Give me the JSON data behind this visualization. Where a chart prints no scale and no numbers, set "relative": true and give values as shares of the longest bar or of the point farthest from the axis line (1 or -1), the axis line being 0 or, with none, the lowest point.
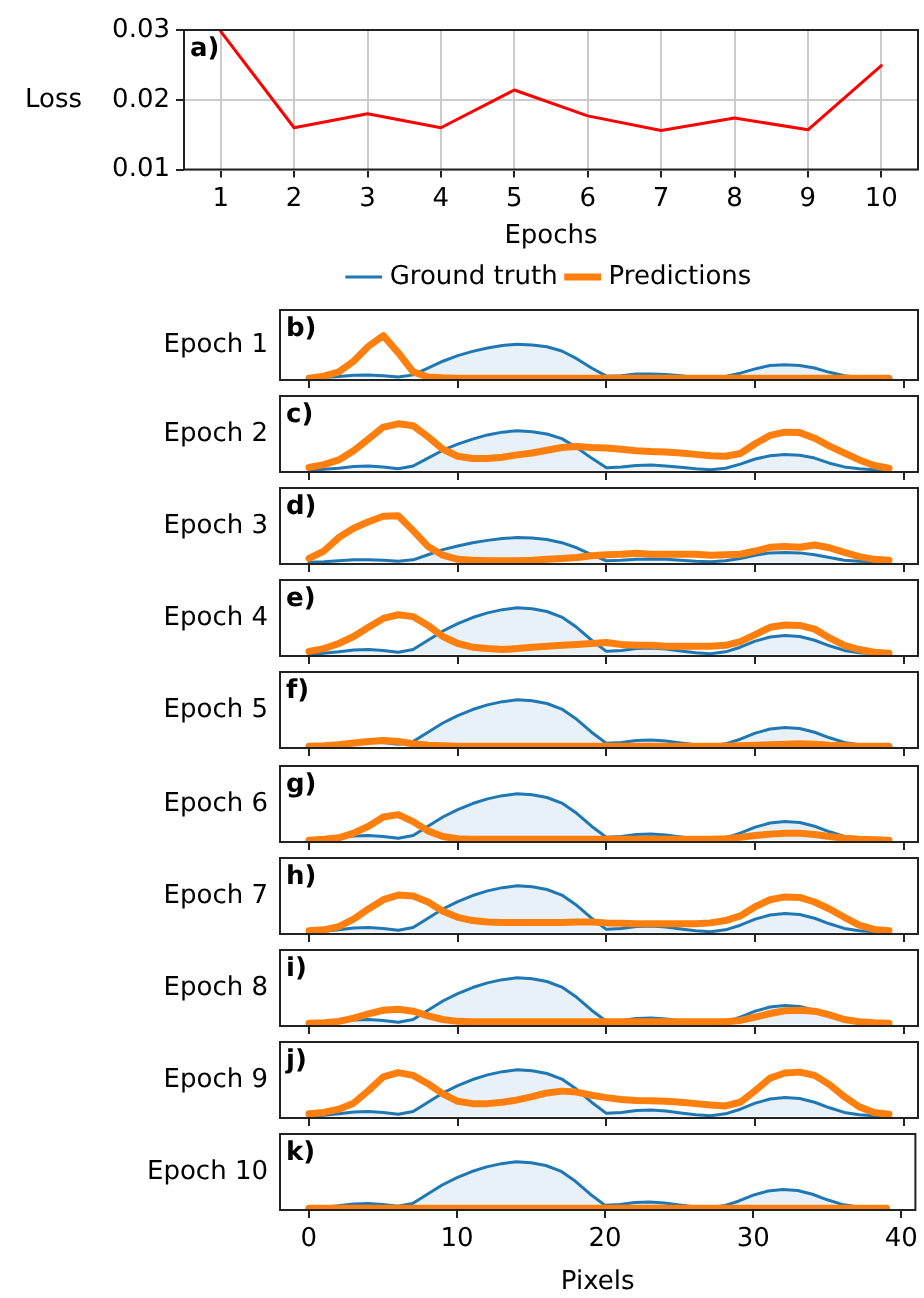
{
  "chart_data": [
    {
      "type": "line",
      "categories": [
        "1",
        "2",
        "3",
        "4",
        "5",
        "6",
        "7",
        "8",
        "9",
        "10"
      ],
      "xlabel": "Epochs",
      "ylabel": "Loss",
      "ylim": [
        0.01,
        0.03
      ],
      "yticks": [
        0.01,
        0.02,
        0.03
      ],
      "grid": true,
      "annotations": [
        "a)"
      ],
      "series": [
        {
          "color": "#ff0000",
          "values": [
            0.0298,
            0.016,
            0.018,
            0.016,
            0.0214,
            0.0177,
            0.0156,
            0.0174,
            0.0157,
            0.0249
          ]
        }
      ]
    },
    {
      "type": "line",
      "relative": true,
      "ylabel": "Epoch 1",
      "annotations": [
        "b)"
      ],
      "legend": "top",
      "tick_labels": false,
      "xlim": [
        -1.95,
        40.95
      ],
      "xticks": [
        0,
        10,
        20,
        30,
        40
      ],
      "x": [
        0,
        1,
        2,
        3,
        4,
        5,
        6,
        7,
        8,
        9,
        10,
        11,
        12,
        13,
        14,
        15,
        16,
        17,
        18,
        19,
        20,
        21,
        22,
        23,
        24,
        25,
        26,
        27,
        28,
        29,
        30,
        31,
        32,
        33,
        34,
        35,
        36,
        37,
        38,
        39
      ],
      "series": [
        {
          "name": "Ground truth",
          "type": "area",
          "color": "#1f77b4",
          "values": [
            0,
            0.02,
            0.04,
            0.07,
            0.08,
            0.06,
            0.03,
            0.08,
            0.24,
            0.4,
            0.53,
            0.63,
            0.71,
            0.77,
            0.8,
            0.78,
            0.74,
            0.64,
            0.46,
            0.24,
            0.05,
            0.06,
            0.1,
            0.1,
            0.09,
            0.06,
            0.02,
            0.01,
            0.04,
            0.12,
            0.22,
            0.3,
            0.32,
            0.3,
            0.24,
            0.14,
            0.06,
            0.02,
            0.01,
            0
          ]
        },
        {
          "name": "Predictions",
          "color": "#ff7f0e",
          "values": [
            0,
            0.05,
            0.15,
            0.4,
            0.75,
            1,
            0.6,
            0.15,
            0.03,
            0.01,
            0,
            0,
            0,
            0,
            0,
            0,
            0,
            0,
            0,
            0,
            0,
            0,
            0,
            0,
            0,
            0,
            0,
            0,
            0,
            0,
            0,
            0,
            0,
            0,
            0,
            0,
            0,
            0,
            0,
            0
          ]
        }
      ]
    },
    {
      "type": "line",
      "relative": true,
      "ylabel": "Epoch 2",
      "annotations": [
        "c)"
      ],
      "tick_labels": false,
      "xlim": [
        -1.95,
        40.95
      ],
      "xticks": [
        0,
        10,
        20,
        30,
        40
      ],
      "x": [
        0,
        1,
        2,
        3,
        4,
        5,
        6,
        7,
        8,
        9,
        10,
        11,
        12,
        13,
        14,
        15,
        16,
        17,
        18,
        19,
        20,
        21,
        22,
        23,
        24,
        25,
        26,
        27,
        28,
        29,
        30,
        31,
        32,
        33,
        34,
        35,
        36,
        37,
        38,
        39
      ],
      "series": [
        {
          "type": "area",
          "color": "#1f77b4",
          "values": [
            0,
            0.02,
            0.04,
            0.08,
            0.09,
            0.07,
            0.03,
            0.09,
            0.26,
            0.43,
            0.56,
            0.67,
            0.76,
            0.82,
            0.85,
            0.83,
            0.78,
            0.68,
            0.49,
            0.26,
            0.05,
            0.07,
            0.1,
            0.11,
            0.09,
            0.06,
            0.03,
            0.01,
            0.04,
            0.13,
            0.24,
            0.31,
            0.34,
            0.32,
            0.26,
            0.15,
            0.07,
            0.03,
            0.01,
            0
          ]
        },
        {
          "color": "#ff7f0e",
          "values": [
            0.06,
            0.12,
            0.22,
            0.42,
            0.67,
            0.93,
            1,
            0.96,
            0.72,
            0.45,
            0.3,
            0.25,
            0.25,
            0.28,
            0.33,
            0.37,
            0.43,
            0.49,
            0.51,
            0.49,
            0.48,
            0.45,
            0.42,
            0.4,
            0.39,
            0.37,
            0.34,
            0.31,
            0.3,
            0.36,
            0.57,
            0.75,
            0.82,
            0.81,
            0.69,
            0.52,
            0.37,
            0.22,
            0.1,
            0.04
          ]
        }
      ]
    },
    {
      "type": "line",
      "relative": true,
      "ylabel": "Epoch 3",
      "annotations": [
        "d)"
      ],
      "tick_labels": false,
      "xlim": [
        -1.95,
        40.95
      ],
      "xticks": [
        0,
        10,
        20,
        30,
        40
      ],
      "x": [
        0,
        1,
        2,
        3,
        4,
        5,
        6,
        7,
        8,
        9,
        10,
        11,
        12,
        13,
        14,
        15,
        16,
        17,
        18,
        19,
        20,
        21,
        22,
        23,
        24,
        25,
        26,
        27,
        28,
        29,
        30,
        31,
        32,
        33,
        34,
        35,
        36,
        37,
        38,
        39
      ],
      "series": [
        {
          "type": "area",
          "color": "#1f77b4",
          "values": [
            0,
            0.01,
            0.03,
            0.05,
            0.05,
            0.04,
            0.02,
            0.05,
            0.16,
            0.27,
            0.35,
            0.42,
            0.47,
            0.51,
            0.53,
            0.52,
            0.49,
            0.42,
            0.31,
            0.16,
            0.03,
            0.04,
            0.06,
            0.07,
            0.06,
            0.04,
            0.02,
            0.01,
            0.03,
            0.08,
            0.15,
            0.2,
            0.21,
            0.2,
            0.16,
            0.1,
            0.04,
            0.02,
            0.01,
            0
          ]
        },
        {
          "color": "#ff7f0e",
          "values": [
            0.08,
            0.24,
            0.53,
            0.73,
            0.87,
            0.99,
            1,
            0.68,
            0.34,
            0.15,
            0.06,
            0.04,
            0.03,
            0.03,
            0.03,
            0.04,
            0.06,
            0.08,
            0.1,
            0.14,
            0.16,
            0.17,
            0.19,
            0.17,
            0.17,
            0.17,
            0.17,
            0.15,
            0.16,
            0.17,
            0.24,
            0.32,
            0.34,
            0.32,
            0.37,
            0.31,
            0.21,
            0.12,
            0.06,
            0.04
          ]
        }
      ]
    },
    {
      "type": "line",
      "relative": true,
      "ylabel": "Epoch 4",
      "annotations": [
        "e)"
      ],
      "tick_labels": false,
      "xlim": [
        -1.95,
        40.95
      ],
      "xticks": [
        0,
        10,
        20,
        30,
        40
      ],
      "x": [
        0,
        1,
        2,
        3,
        4,
        5,
        6,
        7,
        8,
        9,
        10,
        11,
        12,
        13,
        14,
        15,
        16,
        17,
        18,
        19,
        20,
        21,
        22,
        23,
        24,
        25,
        26,
        27,
        28,
        29,
        30,
        31,
        32,
        33,
        34,
        35,
        36,
        37,
        38,
        39
      ],
      "series": [
        {
          "type": "area",
          "color": "#1f77b4",
          "values": [
            0,
            0.02,
            0.05,
            0.09,
            0.1,
            0.08,
            0.04,
            0.1,
            0.3,
            0.5,
            0.66,
            0.79,
            0.89,
            0.96,
            1,
            0.98,
            0.92,
            0.8,
            0.58,
            0.3,
            0.06,
            0.08,
            0.12,
            0.13,
            0.11,
            0.07,
            0.03,
            0.01,
            0.05,
            0.15,
            0.28,
            0.37,
            0.4,
            0.38,
            0.3,
            0.18,
            0.08,
            0.03,
            0.01,
            0
          ]
        },
        {
          "color": "#ff7f0e",
          "values": [
            0.06,
            0.12,
            0.23,
            0.38,
            0.58,
            0.77,
            0.85,
            0.81,
            0.62,
            0.38,
            0.23,
            0.15,
            0.12,
            0.1,
            0.12,
            0.15,
            0.17,
            0.19,
            0.21,
            0.23,
            0.25,
            0.21,
            0.19,
            0.19,
            0.17,
            0.17,
            0.17,
            0.17,
            0.19,
            0.27,
            0.42,
            0.58,
            0.63,
            0.62,
            0.54,
            0.35,
            0.19,
            0.1,
            0.04,
            0.02
          ]
        }
      ]
    },
    {
      "type": "line",
      "relative": true,
      "ylabel": "Epoch 5",
      "annotations": [
        "f)"
      ],
      "tick_labels": false,
      "xlim": [
        -1.95,
        40.95
      ],
      "xticks": [
        0,
        10,
        20,
        30,
        40
      ],
      "x": [
        0,
        1,
        2,
        3,
        4,
        5,
        6,
        7,
        8,
        9,
        10,
        11,
        12,
        13,
        14,
        15,
        16,
        17,
        18,
        19,
        20,
        21,
        22,
        23,
        24,
        25,
        26,
        27,
        28,
        29,
        30,
        31,
        32,
        33,
        34,
        35,
        36,
        37,
        38,
        39
      ],
      "series": [
        {
          "type": "area",
          "color": "#1f77b4",
          "values": [
            0,
            0.02,
            0.05,
            0.09,
            0.1,
            0.08,
            0.04,
            0.1,
            0.3,
            0.5,
            0.66,
            0.79,
            0.89,
            0.96,
            1,
            0.98,
            0.92,
            0.8,
            0.58,
            0.3,
            0.06,
            0.08,
            0.12,
            0.13,
            0.11,
            0.07,
            0.03,
            0.01,
            0.05,
            0.15,
            0.28,
            0.37,
            0.4,
            0.38,
            0.3,
            0.18,
            0.08,
            0.03,
            0.01,
            0
          ]
        },
        {
          "color": "#ff7f0e",
          "values": [
            0,
            0.01,
            0.03,
            0.07,
            0.1,
            0.12,
            0.1,
            0.05,
            0.02,
            0.01,
            0,
            0,
            0,
            0,
            0,
            0,
            0,
            0,
            0,
            0,
            0,
            0,
            0,
            0,
            0,
            0,
            0,
            0,
            0,
            0.01,
            0.02,
            0.03,
            0.04,
            0.05,
            0.04,
            0.02,
            0.01,
            0,
            0,
            0
          ]
        }
      ]
    },
    {
      "type": "line",
      "relative": true,
      "ylabel": "Epoch 6",
      "annotations": [
        "g)"
      ],
      "tick_labels": false,
      "xlim": [
        -1.95,
        40.95
      ],
      "xticks": [
        0,
        10,
        20,
        30,
        40
      ],
      "x": [
        0,
        1,
        2,
        3,
        4,
        5,
        6,
        7,
        8,
        9,
        10,
        11,
        12,
        13,
        14,
        15,
        16,
        17,
        18,
        19,
        20,
        21,
        22,
        23,
        24,
        25,
        26,
        27,
        28,
        29,
        30,
        31,
        32,
        33,
        34,
        35,
        36,
        37,
        38,
        39
      ],
      "series": [
        {
          "type": "area",
          "color": "#1f77b4",
          "values": [
            0,
            0.02,
            0.05,
            0.09,
            0.1,
            0.08,
            0.04,
            0.1,
            0.3,
            0.5,
            0.66,
            0.79,
            0.89,
            0.96,
            1,
            0.98,
            0.92,
            0.8,
            0.58,
            0.3,
            0.06,
            0.08,
            0.12,
            0.13,
            0.11,
            0.07,
            0.03,
            0.01,
            0.05,
            0.15,
            0.28,
            0.37,
            0.4,
            0.38,
            0.3,
            0.18,
            0.08,
            0.03,
            0.01,
            0
          ]
        },
        {
          "color": "#ff7f0e",
          "values": [
            0,
            0.02,
            0.05,
            0.15,
            0.3,
            0.5,
            0.55,
            0.4,
            0.2,
            0.08,
            0.03,
            0.02,
            0.02,
            0.02,
            0.02,
            0.02,
            0.02,
            0.02,
            0.02,
            0.02,
            0.02,
            0.02,
            0.02,
            0.02,
            0.02,
            0.02,
            0.02,
            0.02,
            0.03,
            0.06,
            0.1,
            0.13,
            0.15,
            0.15,
            0.12,
            0.08,
            0.04,
            0.02,
            0.01,
            0
          ]
        }
      ]
    },
    {
      "type": "line",
      "relative": true,
      "ylabel": "Epoch 7",
      "annotations": [
        "h)"
      ],
      "tick_labels": false,
      "xlim": [
        -1.95,
        40.95
      ],
      "xticks": [
        0,
        10,
        20,
        30,
        40
      ],
      "x": [
        0,
        1,
        2,
        3,
        4,
        5,
        6,
        7,
        8,
        9,
        10,
        11,
        12,
        13,
        14,
        15,
        16,
        17,
        18,
        19,
        20,
        21,
        22,
        23,
        24,
        25,
        26,
        27,
        28,
        29,
        30,
        31,
        32,
        33,
        34,
        35,
        36,
        37,
        38,
        39
      ],
      "series": [
        {
          "type": "area",
          "color": "#1f77b4",
          "values": [
            0,
            0.02,
            0.05,
            0.09,
            0.1,
            0.08,
            0.04,
            0.1,
            0.3,
            0.5,
            0.66,
            0.79,
            0.89,
            0.96,
            1,
            0.98,
            0.92,
            0.8,
            0.58,
            0.3,
            0.06,
            0.08,
            0.12,
            0.13,
            0.11,
            0.07,
            0.03,
            0.01,
            0.05,
            0.15,
            0.28,
            0.37,
            0.4,
            0.38,
            0.3,
            0.18,
            0.08,
            0.03,
            0.01,
            0
          ]
        },
        {
          "color": "#ff7f0e",
          "values": [
            0.03,
            0.05,
            0.12,
            0.28,
            0.5,
            0.7,
            0.8,
            0.78,
            0.65,
            0.45,
            0.32,
            0.25,
            0.22,
            0.21,
            0.21,
            0.21,
            0.21,
            0.21,
            0.22,
            0.22,
            0.2,
            0.19,
            0.18,
            0.18,
            0.18,
            0.18,
            0.18,
            0.2,
            0.25,
            0.35,
            0.55,
            0.7,
            0.76,
            0.75,
            0.65,
            0.5,
            0.32,
            0.15,
            0.06,
            0.03
          ]
        }
      ]
    },
    {
      "type": "line",
      "relative": true,
      "ylabel": "Epoch 8",
      "annotations": [
        "i)"
      ],
      "tick_labels": false,
      "xlim": [
        -1.95,
        40.95
      ],
      "xticks": [
        0,
        10,
        20,
        30,
        40
      ],
      "x": [
        0,
        1,
        2,
        3,
        4,
        5,
        6,
        7,
        8,
        9,
        10,
        11,
        12,
        13,
        14,
        15,
        16,
        17,
        18,
        19,
        20,
        21,
        22,
        23,
        24,
        25,
        26,
        27,
        28,
        29,
        30,
        31,
        32,
        33,
        34,
        35,
        36,
        37,
        38,
        39
      ],
      "series": [
        {
          "type": "area",
          "color": "#1f77b4",
          "values": [
            0,
            0.02,
            0.05,
            0.09,
            0.1,
            0.08,
            0.04,
            0.1,
            0.3,
            0.5,
            0.66,
            0.79,
            0.89,
            0.96,
            1,
            0.98,
            0.92,
            0.8,
            0.58,
            0.3,
            0.06,
            0.08,
            0.12,
            0.13,
            0.11,
            0.07,
            0.03,
            0.01,
            0.05,
            0.15,
            0.28,
            0.37,
            0.4,
            0.38,
            0.3,
            0.18,
            0.08,
            0.03,
            0.01,
            0
          ]
        },
        {
          "color": "#ff7f0e",
          "values": [
            0.02,
            0.03,
            0.06,
            0.13,
            0.22,
            0.3,
            0.32,
            0.28,
            0.18,
            0.1,
            0.06,
            0.05,
            0.05,
            0.05,
            0.05,
            0.05,
            0.05,
            0.05,
            0.05,
            0.05,
            0.05,
            0.05,
            0.05,
            0.05,
            0.05,
            0.05,
            0.05,
            0.05,
            0.05,
            0.08,
            0.15,
            0.23,
            0.29,
            0.3,
            0.28,
            0.2,
            0.1,
            0.05,
            0.03,
            0.02
          ]
        }
      ]
    },
    {
      "type": "line",
      "relative": true,
      "ylabel": "Epoch 9",
      "annotations": [
        "j)"
      ],
      "tick_labels": false,
      "xlim": [
        -1.95,
        40.95
      ],
      "xticks": [
        0,
        10,
        20,
        30,
        40
      ],
      "x": [
        0,
        1,
        2,
        3,
        4,
        5,
        6,
        7,
        8,
        9,
        10,
        11,
        12,
        13,
        14,
        15,
        16,
        17,
        18,
        19,
        20,
        21,
        22,
        23,
        24,
        25,
        26,
        27,
        28,
        29,
        30,
        31,
        32,
        33,
        34,
        35,
        36,
        37,
        38,
        39
      ],
      "series": [
        {
          "type": "area",
          "color": "#1f77b4",
          "values": [
            0,
            0.02,
            0.05,
            0.09,
            0.1,
            0.08,
            0.04,
            0.1,
            0.3,
            0.5,
            0.66,
            0.79,
            0.89,
            0.96,
            1,
            0.98,
            0.92,
            0.8,
            0.58,
            0.3,
            0.06,
            0.08,
            0.12,
            0.13,
            0.11,
            0.07,
            0.03,
            0.01,
            0.05,
            0.15,
            0.28,
            0.37,
            0.4,
            0.38,
            0.3,
            0.18,
            0.08,
            0.03,
            0.01,
            0
          ]
        },
        {
          "color": "#ff7f0e",
          "values": [
            0.05,
            0.08,
            0.15,
            0.28,
            0.55,
            0.85,
            0.94,
            0.88,
            0.7,
            0.48,
            0.32,
            0.27,
            0.27,
            0.3,
            0.35,
            0.42,
            0.5,
            0.54,
            0.52,
            0.45,
            0.4,
            0.36,
            0.34,
            0.33,
            0.32,
            0.3,
            0.27,
            0.24,
            0.22,
            0.3,
            0.55,
            0.82,
            0.93,
            0.95,
            0.88,
            0.68,
            0.42,
            0.2,
            0.08,
            0.04
          ]
        }
      ]
    },
    {
      "type": "line",
      "relative": true,
      "ylabel": "Epoch 10",
      "annotations": [
        "k)"
      ],
      "tick_labels": "x",
      "xlabel": "Pixels",
      "xlim": [
        -1.95,
        40.95
      ],
      "xticks": [
        0,
        10,
        20,
        30,
        40
      ],
      "x": [
        0,
        1,
        2,
        3,
        4,
        5,
        6,
        7,
        8,
        9,
        10,
        11,
        12,
        13,
        14,
        15,
        16,
        17,
        18,
        19,
        20,
        21,
        22,
        23,
        24,
        25,
        26,
        27,
        28,
        29,
        30,
        31,
        32,
        33,
        34,
        35,
        36,
        37,
        38,
        39
      ],
      "series": [
        {
          "type": "area",
          "color": "#1f77b4",
          "values": [
            0,
            0.02,
            0.05,
            0.09,
            0.1,
            0.08,
            0.04,
            0.1,
            0.3,
            0.5,
            0.66,
            0.79,
            0.89,
            0.96,
            1,
            0.98,
            0.92,
            0.8,
            0.58,
            0.3,
            0.06,
            0.08,
            0.12,
            0.13,
            0.11,
            0.07,
            0.03,
            0.01,
            0.05,
            0.15,
            0.28,
            0.37,
            0.4,
            0.38,
            0.3,
            0.18,
            0.08,
            0.03,
            0.01,
            0
          ]
        },
        {
          "color": "#ff7f0e",
          "values": [
            0,
            0,
            0,
            0,
            0,
            0,
            0,
            0,
            0,
            0,
            0,
            0,
            0,
            0,
            0,
            0,
            0,
            0,
            0,
            0,
            0,
            0,
            0,
            0,
            0,
            0,
            0,
            0,
            0,
            0,
            0,
            0,
            0,
            0,
            0,
            0,
            0,
            0,
            0,
            0
          ]
        }
      ]
    }
  ]
}
